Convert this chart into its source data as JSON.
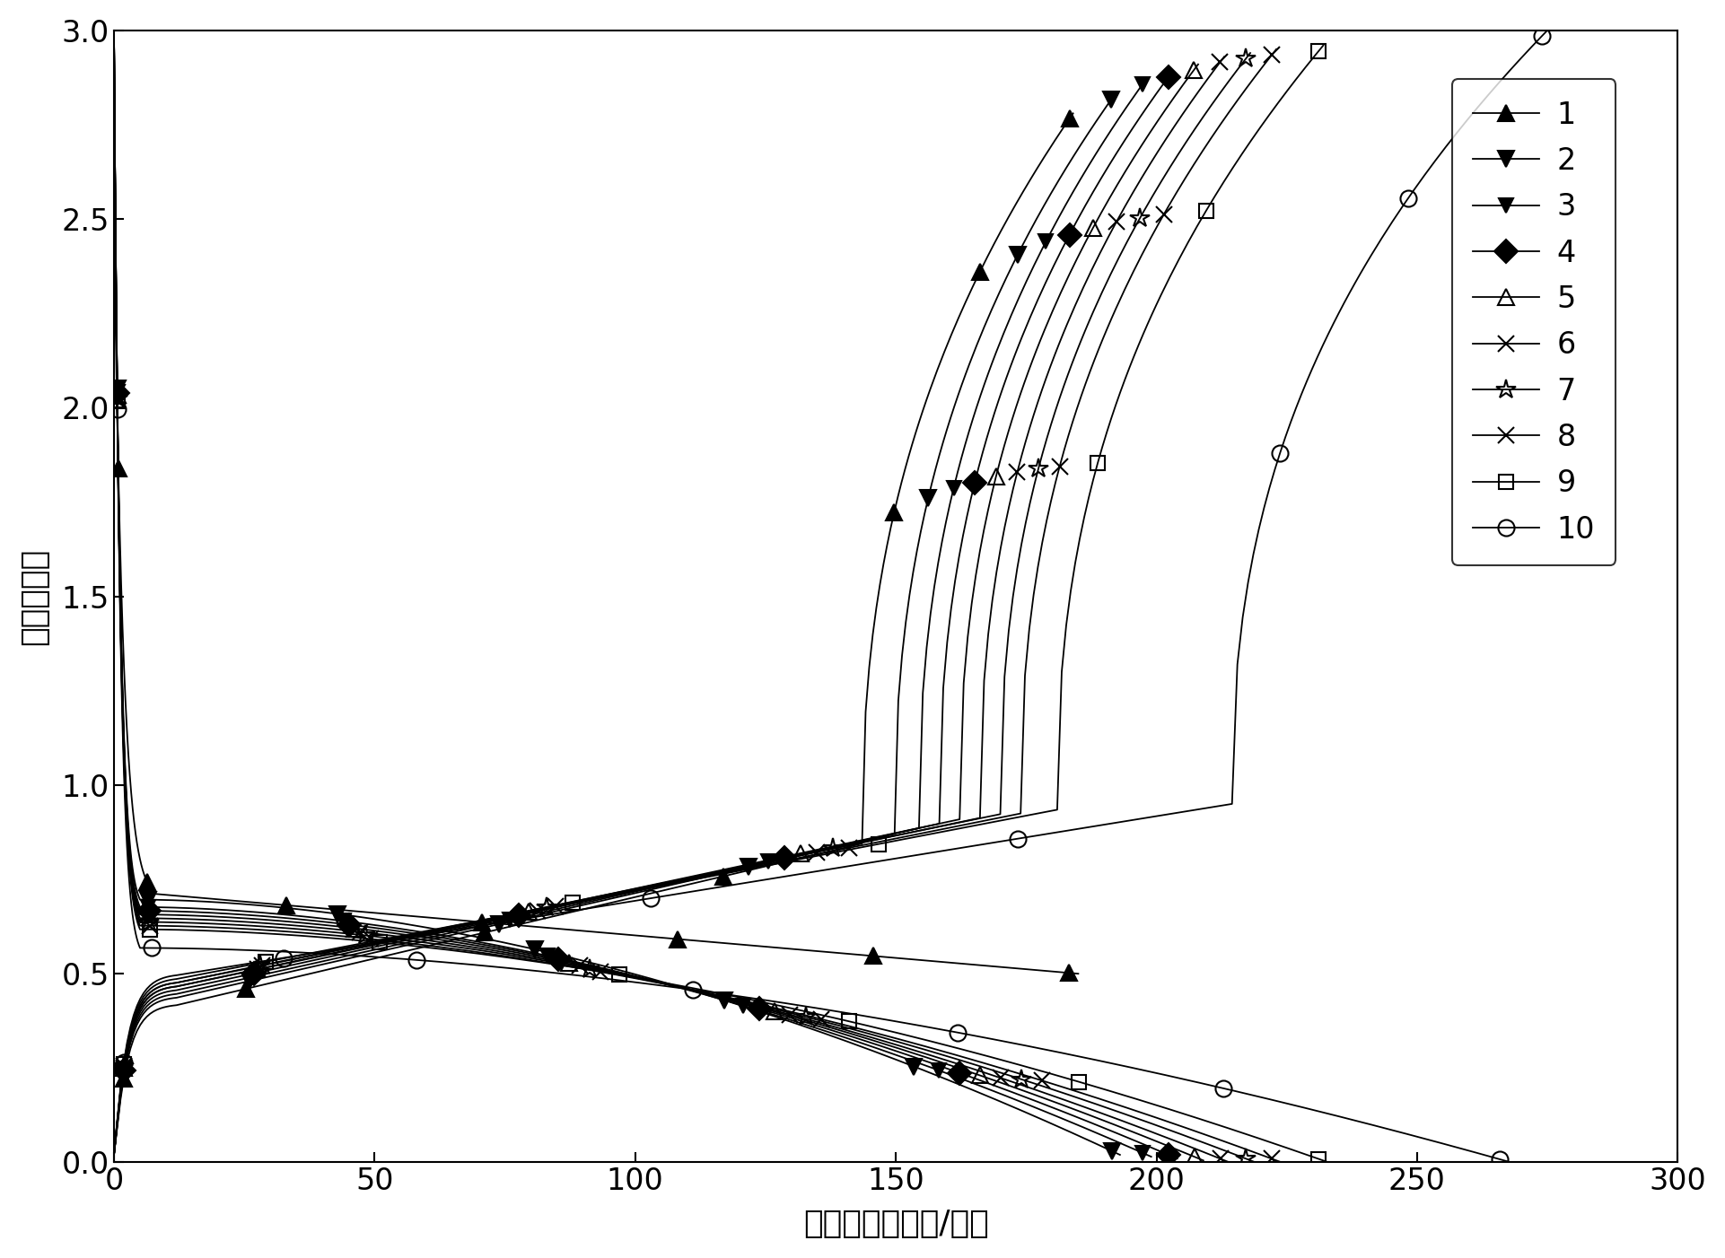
{
  "xlabel": "比容量（毫安时/克）",
  "ylabel": "电压（伏）",
  "xlim": [
    0,
    300
  ],
  "ylim": [
    0.0,
    3.0
  ],
  "xticks": [
    0,
    50,
    100,
    150,
    200,
    250,
    300
  ],
  "yticks": [
    0.0,
    0.5,
    1.0,
    1.5,
    2.0,
    2.5,
    3.0
  ],
  "legend_labels": [
    "1",
    "2",
    "3",
    "4",
    "5",
    "6",
    "7",
    "8",
    "9",
    "10"
  ],
  "legend_markers": [
    "^",
    "v",
    "v",
    "D",
    "^",
    "x",
    "*",
    "x",
    "s",
    "o"
  ],
  "legend_fillstyles": [
    "full",
    "full",
    "full",
    "full",
    "none",
    "none",
    "none",
    "none",
    "none",
    "none"
  ],
  "discharge_max_cap": [
    185,
    193,
    199,
    204,
    209,
    214,
    219,
    224,
    233,
    268
  ],
  "discharge_start_v": [
    2.51,
    3.0,
    3.0,
    3.0,
    3.0,
    3.0,
    3.0,
    3.0,
    3.0,
    3.0
  ],
  "discharge_plateau": [
    0.69,
    0.66,
    0.64,
    0.63,
    0.62,
    0.61,
    0.6,
    0.59,
    0.58,
    0.53
  ],
  "discharge_end_v": [
    0.5,
    0.02,
    0.015,
    0.01,
    0.005,
    0.0,
    0.0,
    0.0,
    0.0,
    0.0
  ],
  "charge_max_cap": [
    184,
    192,
    198,
    203,
    208,
    213,
    218,
    223,
    232,
    275
  ],
  "charge_start_v": [
    0.02,
    0.02,
    0.02,
    0.02,
    0.02,
    0.02,
    0.02,
    0.02,
    0.02,
    0.02
  ],
  "charge_plateau": [
    0.42,
    0.44,
    0.45,
    0.46,
    0.47,
    0.47,
    0.48,
    0.48,
    0.49,
    0.5
  ],
  "charge_end_v": [
    2.78,
    2.83,
    2.87,
    2.89,
    2.91,
    2.93,
    2.94,
    2.95,
    2.96,
    3.0
  ],
  "marker_sizes": [
    13,
    13,
    11,
    13,
    13,
    13,
    16,
    13,
    12,
    13
  ]
}
